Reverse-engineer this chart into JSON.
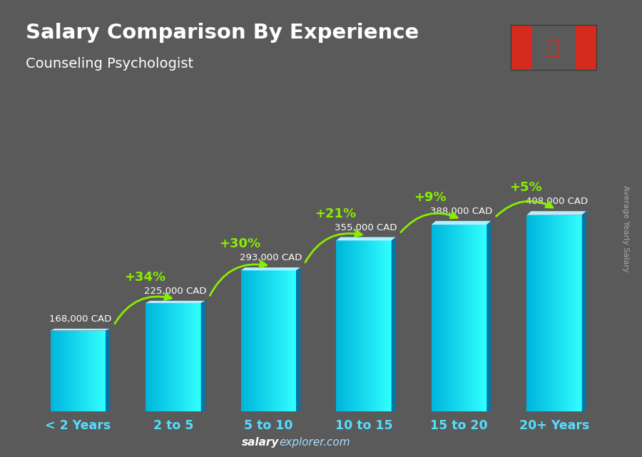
{
  "title": "Salary Comparison By Experience",
  "subtitle": "Counseling Psychologist",
  "categories": [
    "< 2 Years",
    "2 to 5",
    "5 to 10",
    "10 to 15",
    "15 to 20",
    "20+ Years"
  ],
  "values": [
    168000,
    225000,
    293000,
    355000,
    388000,
    408000
  ],
  "labels": [
    "168,000 CAD",
    "225,000 CAD",
    "293,000 CAD",
    "355,000 CAD",
    "388,000 CAD",
    "408,000 CAD"
  ],
  "pct_changes": [
    "+34%",
    "+30%",
    "+21%",
    "+9%",
    "+5%"
  ],
  "bg_color": "#5a5a5a",
  "bar_face_left": "#1ab8e8",
  "bar_face_right": "#00cfff",
  "bar_top_color": "#80e8ff",
  "bar_side_color": "#0088bb",
  "title_color": "#ffffff",
  "subtitle_color": "#ffffff",
  "label_color": "#ffffff",
  "pct_color": "#88ee00",
  "footer_salary_color": "#ffffff",
  "footer_explorer_color": "#aaddff",
  "ylabel": "Average Yearly Salary",
  "ylabel_color": "#aaaaaa"
}
